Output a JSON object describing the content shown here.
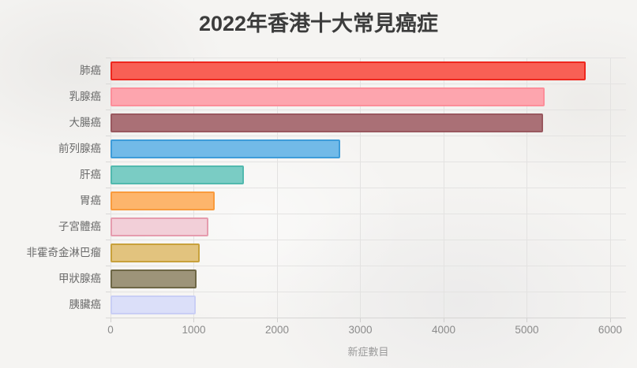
{
  "title": "2022年香港十大常見癌症",
  "chart_data": {
    "type": "bar",
    "orientation": "horizontal",
    "title": "2022年香港十大常見癌症",
    "xlabel": "新症數目",
    "ylabel": "",
    "xlim": [
      0,
      6190
    ],
    "x_ticks": [
      0,
      1000,
      2000,
      3000,
      4000,
      5000,
      6000
    ],
    "grid": true,
    "legend": false,
    "categories": [
      "肺癌",
      "乳腺癌",
      "大腸癌",
      "前列腺癌",
      "肝癌",
      "胃癌",
      "子宮體癌",
      "非霍奇金淋巴瘤",
      "甲狀腺癌",
      "胰臟癌"
    ],
    "values": [
      5710,
      5210,
      5195,
      2755,
      1600,
      1255,
      1175,
      1070,
      1035,
      1020
    ],
    "bar_fill_colors": [
      "#f86055",
      "#fda5ae",
      "#aa7076",
      "#72bae8",
      "#7accc4",
      "#fdb56c",
      "#f2cfd8",
      "#e2c37e",
      "#9d9479",
      "#dbdff9"
    ],
    "bar_border_colors": [
      "#ee271e",
      "#fc8e9a",
      "#99585f",
      "#3e9cd9",
      "#52b9ae",
      "#f99b3d",
      "#e59cae",
      "#c8a13c",
      "#6e6746",
      "#c9cef5"
    ]
  },
  "colors": {
    "background": "#f5f4f2",
    "grid": "#e3e2e1",
    "axis": "#d6d5d4",
    "tick_label": "#8b8b8b",
    "category_label": "#6a6a6a",
    "axis_title": "#9a9a9a",
    "title_text": "#3c3c3c"
  }
}
